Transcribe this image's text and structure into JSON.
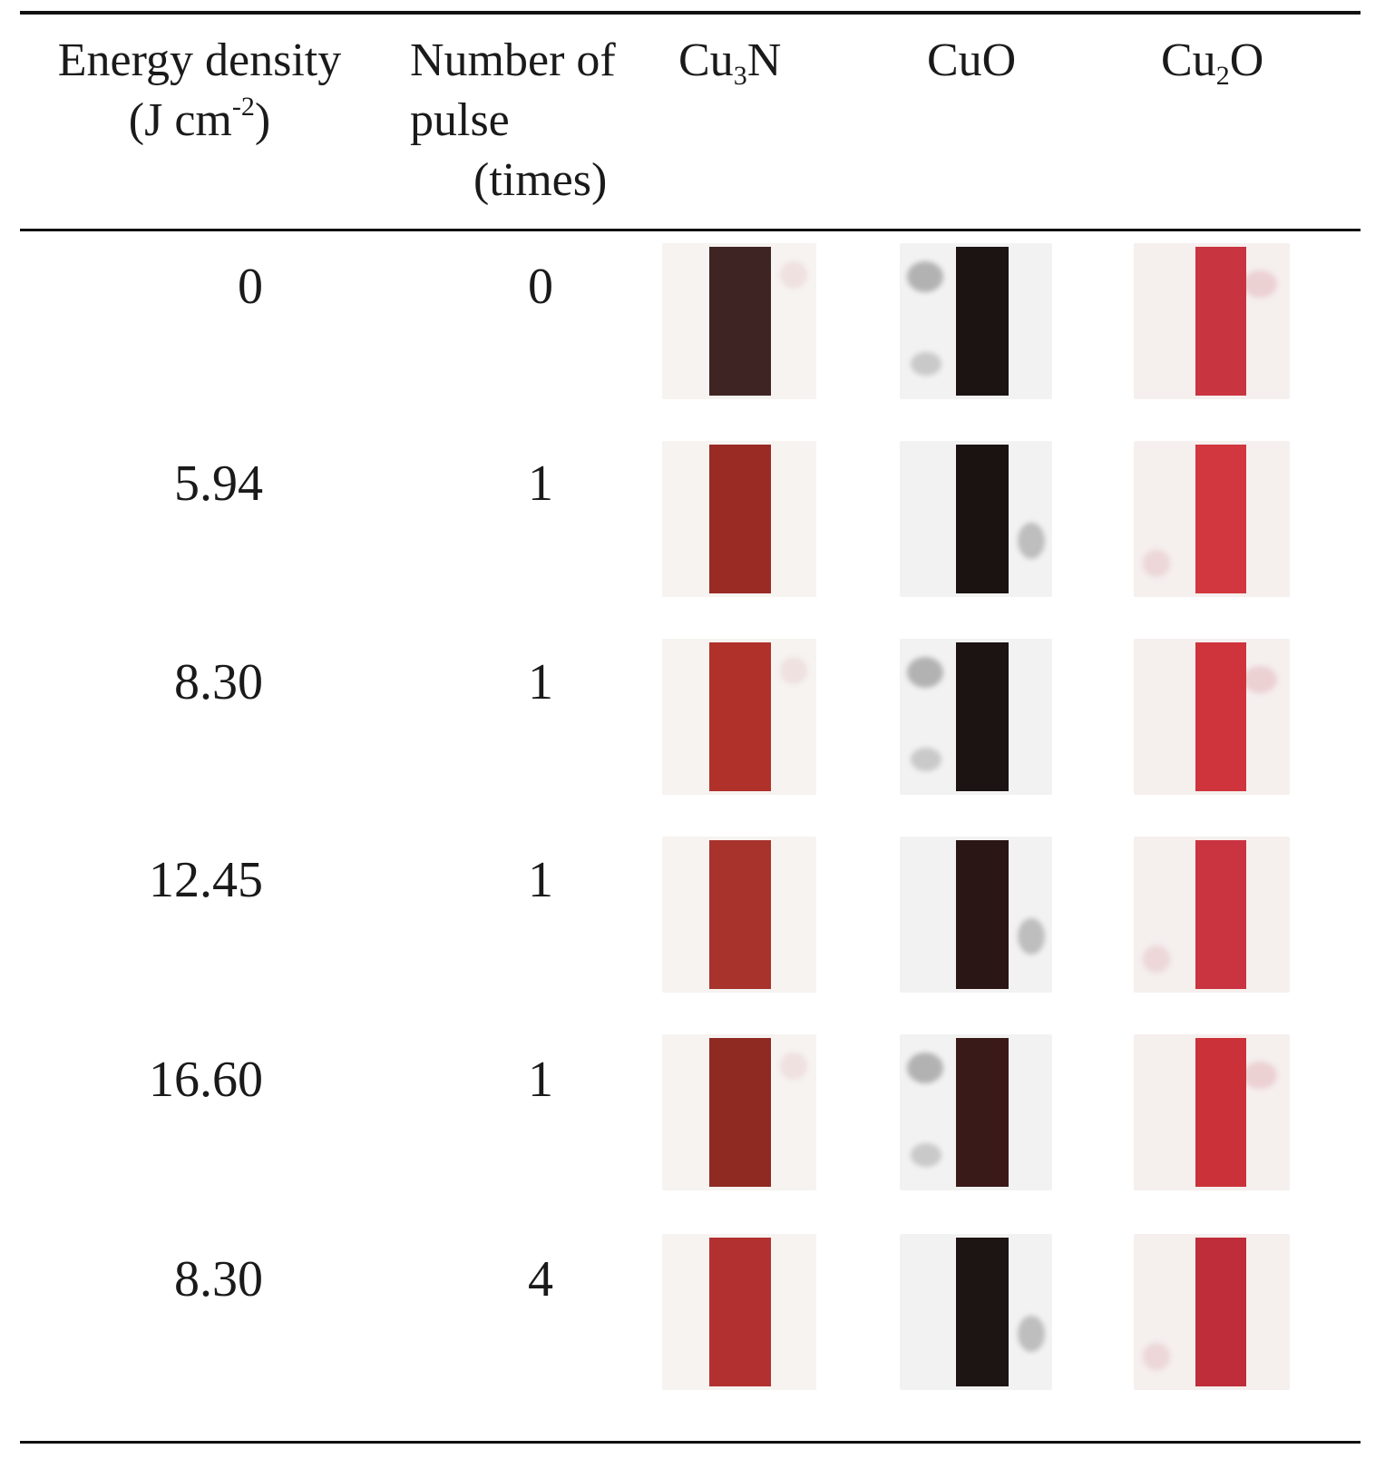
{
  "table": {
    "headers": {
      "energy_line1": "Energy density",
      "energy_line2_prefix": "(J cm",
      "energy_line2_sup": "-2",
      "energy_line2_suffix": ")",
      "pulse_line1": "Number of",
      "pulse_line2": "pulse",
      "pulse_line3": "(times)",
      "cu3n_base": "Cu",
      "cu3n_sub": "3",
      "cu3n_tail": "N",
      "cuo": "CuO",
      "cu2o_base": "Cu",
      "cu2o_sub": "2",
      "cu2o_tail": "O"
    },
    "rows": [
      {
        "energy": "0",
        "pulse": "0",
        "colors": {
          "cu3n": "#3e2422",
          "cuo": "#1b1412",
          "cu2o": "#c83440"
        }
      },
      {
        "energy": "5.94",
        "pulse": "1",
        "colors": {
          "cu3n": "#9a2a24",
          "cuo": "#1a1312",
          "cu2o": "#d2363e"
        }
      },
      {
        "energy": "8.30",
        "pulse": "1",
        "colors": {
          "cu3n": "#b0302a",
          "cuo": "#1c1412",
          "cu2o": "#cf333c"
        }
      },
      {
        "energy": "12.45",
        "pulse": "1",
        "colors": {
          "cu3n": "#a8322c",
          "cuo": "#2a1614",
          "cu2o": "#ca3340"
        }
      },
      {
        "energy": "16.60",
        "pulse": "1",
        "colors": {
          "cu3n": "#8e2a22",
          "cuo": "#3a1a18",
          "cu2o": "#cb3138"
        }
      },
      {
        "energy": "8.30",
        "pulse": "4",
        "colors": {
          "cu3n": "#b23130",
          "cuo": "#1d1514",
          "cu2o": "#bf2c3a"
        }
      }
    ]
  }
}
